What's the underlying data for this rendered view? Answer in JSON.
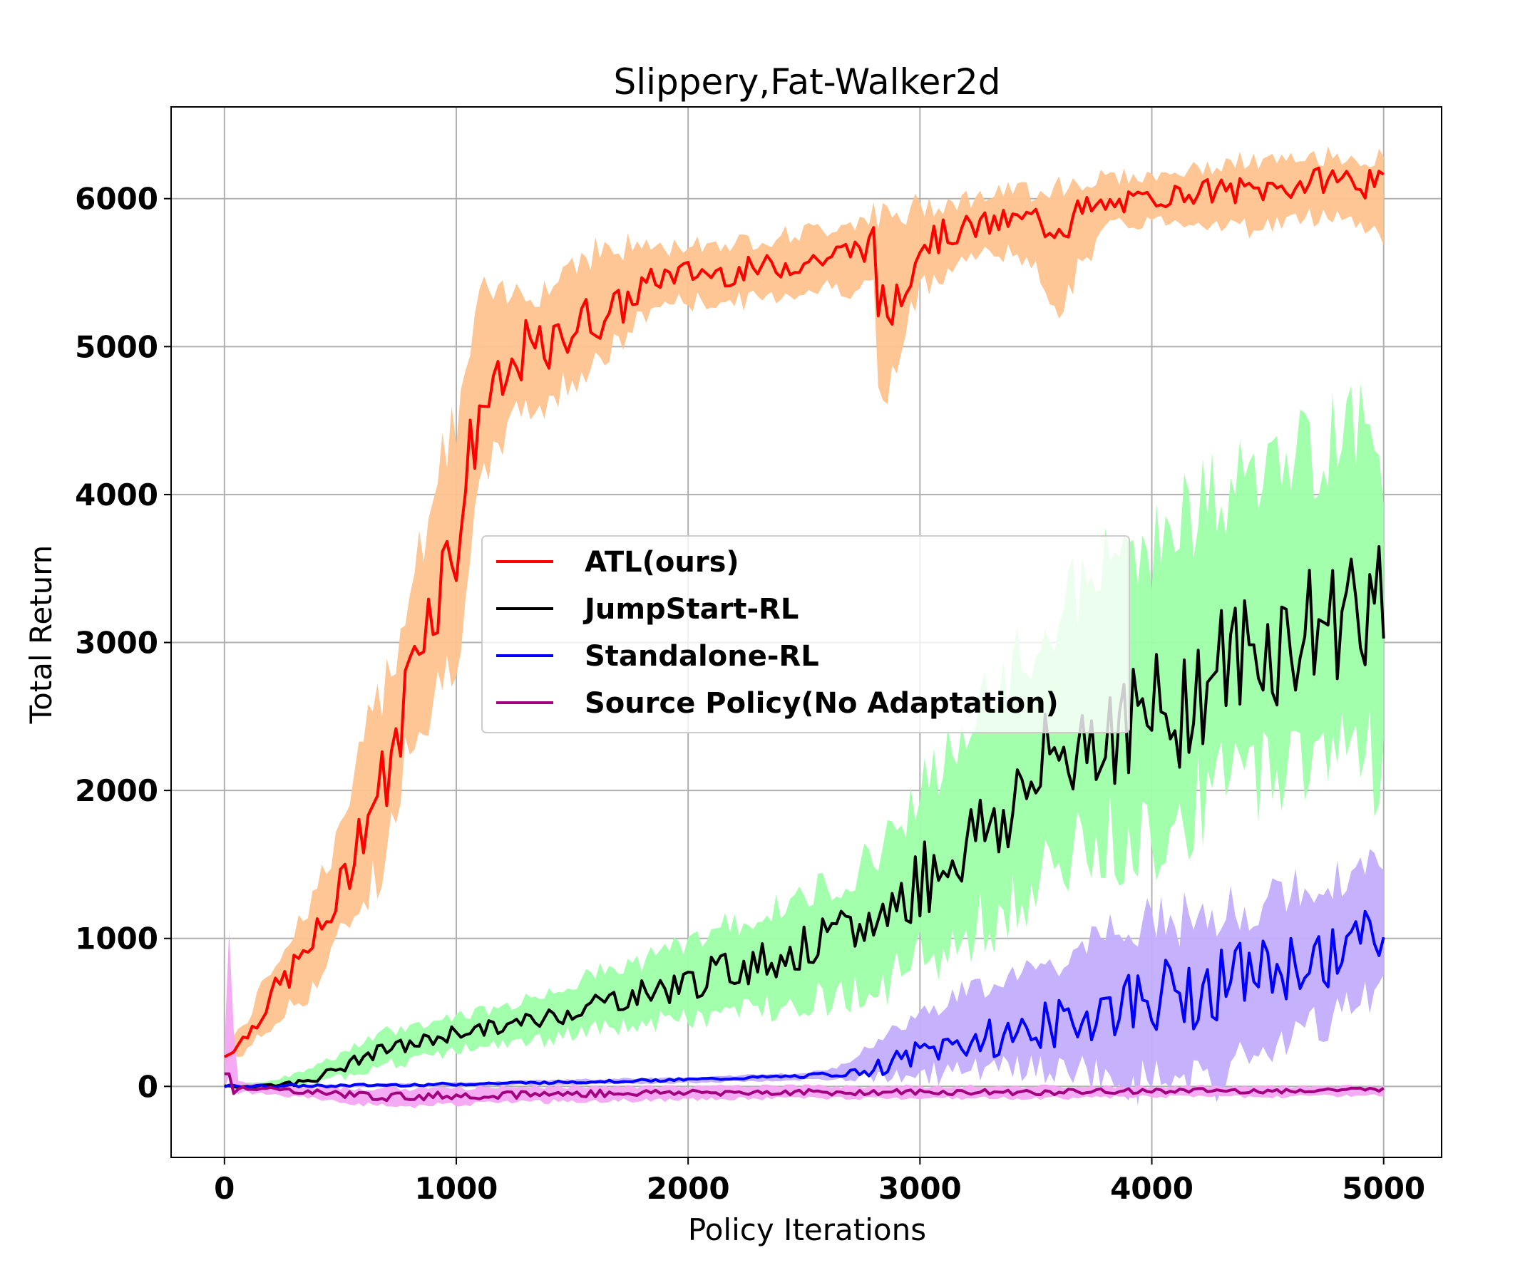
{
  "chart_data": {
    "type": "line",
    "title": "Slippery,Fat-Walker2d",
    "xlabel": "Policy Iterations",
    "ylabel": "Total Return",
    "xlim": [
      -230,
      5250
    ],
    "ylim": [
      -480,
      6620
    ],
    "xticks": [
      0,
      1000,
      2000,
      3000,
      4000,
      5000
    ],
    "xtick_labels": [
      "0",
      "1000",
      "2000",
      "3000",
      "4000",
      "5000"
    ],
    "yticks": [
      0,
      1000,
      2000,
      3000,
      4000,
      5000,
      6000
    ],
    "ytick_labels": [
      "0",
      "1000",
      "2000",
      "3000",
      "4000",
      "5000",
      "6000"
    ],
    "grid": true,
    "legend_position": "center",
    "series": [
      {
        "name": "ATL(ours)",
        "color": "#ff0000",
        "band_color": "#ffc38f",
        "x": [
          0,
          100,
          200,
          300,
          400,
          500,
          600,
          700,
          750,
          800,
          900,
          1000,
          1100,
          1200,
          1300,
          1400,
          1500,
          1600,
          1700,
          1800,
          1900,
          2000,
          2200,
          2400,
          2600,
          2800,
          2830,
          3000,
          3200,
          3400,
          3600,
          3800,
          4000,
          4200,
          4400,
          4600,
          4800,
          5000
        ],
        "values": [
          200,
          350,
          600,
          800,
          1000,
          1320,
          1800,
          2100,
          2300,
          2900,
          3300,
          3700,
          4600,
          4700,
          5000,
          4950,
          5150,
          5200,
          5250,
          5400,
          5480,
          5500,
          5500,
          5550,
          5600,
          5700,
          5150,
          5700,
          5800,
          5850,
          5850,
          5950,
          6000,
          6050,
          6050,
          6080,
          6150,
          6070
        ],
        "lower": [
          150,
          250,
          400,
          550,
          700,
          1000,
          1300,
          1500,
          2000,
          2400,
          2600,
          3000,
          3900,
          4400,
          4600,
          4600,
          4800,
          4900,
          5000,
          5200,
          5300,
          5300,
          5300,
          5350,
          5400,
          5400,
          4500,
          5400,
          5600,
          5650,
          5300,
          5800,
          5850,
          5850,
          5800,
          5850,
          5900,
          5750
        ],
        "upper": [
          260,
          450,
          800,
          1050,
          1350,
          1700,
          2300,
          2800,
          3000,
          3400,
          4000,
          4500,
          5300,
          5300,
          5400,
          5400,
          5600,
          5650,
          5650,
          5700,
          5650,
          5700,
          5700,
          5750,
          5800,
          5900,
          5800,
          5950,
          6000,
          6050,
          6100,
          6150,
          6150,
          6200,
          6250,
          6250,
          6300,
          6250
        ]
      },
      {
        "name": "JumpStart-RL",
        "color": "#000000",
        "band_color": "#9dffa8",
        "x": [
          0,
          100,
          200,
          300,
          400,
          500,
          600,
          700,
          800,
          900,
          1000,
          1200,
          1400,
          1600,
          1800,
          2000,
          2200,
          2400,
          2600,
          2800,
          3000,
          3200,
          3400,
          3600,
          3800,
          4000,
          4200,
          4400,
          4600,
          4800,
          4900,
          5000
        ],
        "values": [
          0,
          0,
          10,
          20,
          60,
          120,
          200,
          250,
          280,
          320,
          370,
          400,
          470,
          560,
          630,
          700,
          800,
          880,
          980,
          1100,
          1400,
          1650,
          1900,
          2250,
          2450,
          2450,
          2700,
          2950,
          3000,
          3200,
          3350,
          3100
        ],
        "lower": [
          0,
          0,
          0,
          0,
          20,
          60,
          110,
          150,
          170,
          200,
          250,
          280,
          320,
          380,
          420,
          450,
          500,
          560,
          600,
          650,
          850,
          1000,
          1200,
          1500,
          1650,
          1700,
          1900,
          2100,
          2200,
          2300,
          2400,
          2050
        ],
        "upper": [
          0,
          20,
          40,
          80,
          140,
          220,
          300,
          370,
          400,
          440,
          480,
          530,
          640,
          760,
          850,
          980,
          1100,
          1200,
          1350,
          1550,
          2000,
          2400,
          2800,
          3200,
          3500,
          3700,
          3900,
          4100,
          4200,
          4400,
          4500,
          4300
        ]
      },
      {
        "name": "Standalone-RL",
        "color": "#0000ff",
        "band_color": "#c3aefc",
        "x": [
          0,
          500,
          1000,
          1500,
          2000,
          2500,
          2700,
          2800,
          3000,
          3200,
          3400,
          3600,
          3800,
          4000,
          4200,
          4400,
          4600,
          4800,
          4900,
          5000
        ],
        "values": [
          0,
          5,
          15,
          30,
          45,
          70,
          90,
          120,
          220,
          300,
          350,
          430,
          520,
          600,
          650,
          750,
          800,
          900,
          1000,
          1000
        ],
        "lower": [
          0,
          0,
          5,
          15,
          25,
          40,
          50,
          60,
          80,
          100,
          100,
          110,
          70,
          0,
          0,
          150,
          300,
          450,
          550,
          700
        ],
        "upper": [
          0,
          10,
          25,
          45,
          60,
          90,
          150,
          300,
          500,
          650,
          720,
          850,
          1000,
          1100,
          1150,
          1200,
          1300,
          1400,
          1500,
          1450
        ]
      },
      {
        "name": "Source Policy(No Adaptation)",
        "color": "#a3007f",
        "band_color": "#f3a6f2",
        "x": [
          0,
          20,
          50,
          100,
          200,
          300,
          400,
          500,
          600,
          700,
          800,
          1000,
          1500,
          2000,
          2500,
          3000,
          3500,
          4000,
          4500,
          5000
        ],
        "values": [
          30,
          20,
          0,
          -10,
          -20,
          -30,
          -40,
          -50,
          -60,
          -70,
          -70,
          -60,
          -50,
          -40,
          -40,
          -40,
          -40,
          -30,
          -30,
          -20
        ],
        "lower": [
          0,
          -20,
          -40,
          -40,
          -60,
          -70,
          -80,
          -110,
          -120,
          -130,
          -130,
          -120,
          -100,
          -90,
          -80,
          -80,
          -80,
          -70,
          -70,
          -60
        ],
        "upper": [
          300,
          1000,
          40,
          20,
          10,
          0,
          -10,
          -10,
          -10,
          -20,
          -20,
          -10,
          0,
          0,
          0,
          0,
          0,
          0,
          0,
          0
        ]
      }
    ]
  }
}
